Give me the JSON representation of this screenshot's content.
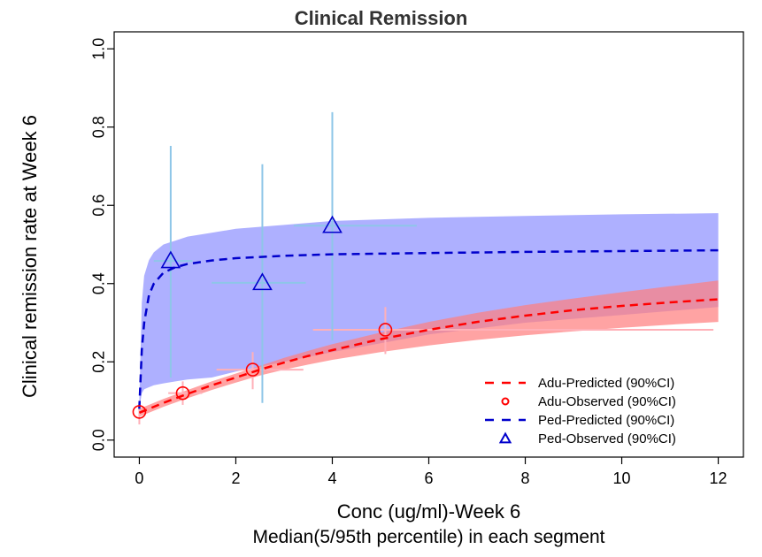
{
  "chart_data": {
    "type": "line",
    "title": "Clinical Remission",
    "xlabel": "Conc (ug/ml)-Week 6",
    "xlabel_line2": "Median(5/95th percentile) in each segment",
    "ylabel": "Clinical remission rate at Week 6",
    "xlim": [
      0,
      12
    ],
    "ylim": [
      0,
      1
    ],
    "x_ticks": [
      "0",
      "2",
      "4",
      "6",
      "8",
      "10",
      "12"
    ],
    "y_ticks": [
      "0.0",
      "0.2",
      "0.4",
      "0.6",
      "0.8",
      "1.0"
    ],
    "grid": false,
    "legend_position": "bottom-right",
    "colors": {
      "adult": "#ff0000",
      "adult_band": "#ff8080",
      "adult_error": "#ffb0b8",
      "ped": "#0000cc",
      "ped_band": "#9a9cff",
      "ped_error": "#8ec6e8",
      "overlap": "#a050b8"
    },
    "series": [
      {
        "name": "Adu-Predicted (90%CI)",
        "kind": "predicted",
        "style": "dashed",
        "x": [
          0,
          0.5,
          1,
          1.5,
          2,
          2.5,
          3,
          3.5,
          4,
          5,
          6,
          7,
          8,
          9,
          10,
          11,
          12
        ],
        "y": [
          0.07,
          0.095,
          0.118,
          0.14,
          0.16,
          0.18,
          0.198,
          0.215,
          0.23,
          0.258,
          0.282,
          0.302,
          0.318,
          0.332,
          0.343,
          0.352,
          0.36
        ],
        "lower": [
          0.06,
          0.085,
          0.107,
          0.128,
          0.147,
          0.165,
          0.18,
          0.193,
          0.205,
          0.225,
          0.242,
          0.256,
          0.268,
          0.278,
          0.287,
          0.295,
          0.302
        ],
        "upper": [
          0.08,
          0.105,
          0.128,
          0.15,
          0.17,
          0.19,
          0.21,
          0.228,
          0.245,
          0.275,
          0.302,
          0.325,
          0.345,
          0.362,
          0.378,
          0.393,
          0.408
        ]
      },
      {
        "name": "Adu-Observed (90%CI)",
        "kind": "observed",
        "marker": "circle",
        "points": [
          {
            "x": 0.0,
            "y": 0.072,
            "xlo": 0.0,
            "xhi": 0.05,
            "ylo": 0.04,
            "yhi": 0.1
          },
          {
            "x": 0.9,
            "y": 0.12,
            "xlo": 0.6,
            "xhi": 1.3,
            "ylo": 0.09,
            "yhi": 0.15
          },
          {
            "x": 2.35,
            "y": 0.18,
            "xlo": 1.6,
            "xhi": 3.4,
            "ylo": 0.13,
            "yhi": 0.225
          },
          {
            "x": 5.1,
            "y": 0.282,
            "xlo": 3.6,
            "xhi": 11.9,
            "ylo": 0.22,
            "yhi": 0.34
          }
        ]
      },
      {
        "name": "Ped-Predicted (90%CI)",
        "kind": "predicted",
        "style": "dashed",
        "x": [
          0,
          0.05,
          0.1,
          0.2,
          0.3,
          0.5,
          0.75,
          1,
          1.5,
          2,
          3,
          4,
          6,
          8,
          10,
          12
        ],
        "y": [
          0.08,
          0.23,
          0.3,
          0.37,
          0.4,
          0.428,
          0.442,
          0.45,
          0.459,
          0.465,
          0.471,
          0.475,
          0.478,
          0.481,
          0.483,
          0.485
        ],
        "lower": [
          0.08,
          0.12,
          0.13,
          0.135,
          0.14,
          0.145,
          0.15,
          0.155,
          0.16,
          0.175,
          0.2,
          0.225,
          0.27,
          0.3,
          0.32,
          0.34
        ],
        "upper": [
          0.1,
          0.35,
          0.42,
          0.46,
          0.48,
          0.5,
          0.51,
          0.52,
          0.53,
          0.54,
          0.55,
          0.56,
          0.568,
          0.573,
          0.577,
          0.58
        ]
      },
      {
        "name": "Ped-Observed (90%CI)",
        "kind": "observed",
        "marker": "triangle",
        "points": [
          {
            "x": 0.65,
            "y": 0.458,
            "xlo": 0.3,
            "xhi": 1.1,
            "ylo": 0.16,
            "yhi": 0.752
          },
          {
            "x": 2.55,
            "y": 0.402,
            "xlo": 1.5,
            "xhi": 3.45,
            "ylo": 0.095,
            "yhi": 0.705
          },
          {
            "x": 4.0,
            "y": 0.548,
            "xlo": 3.2,
            "xhi": 5.75,
            "ylo": 0.255,
            "yhi": 0.838
          }
        ]
      }
    ]
  }
}
